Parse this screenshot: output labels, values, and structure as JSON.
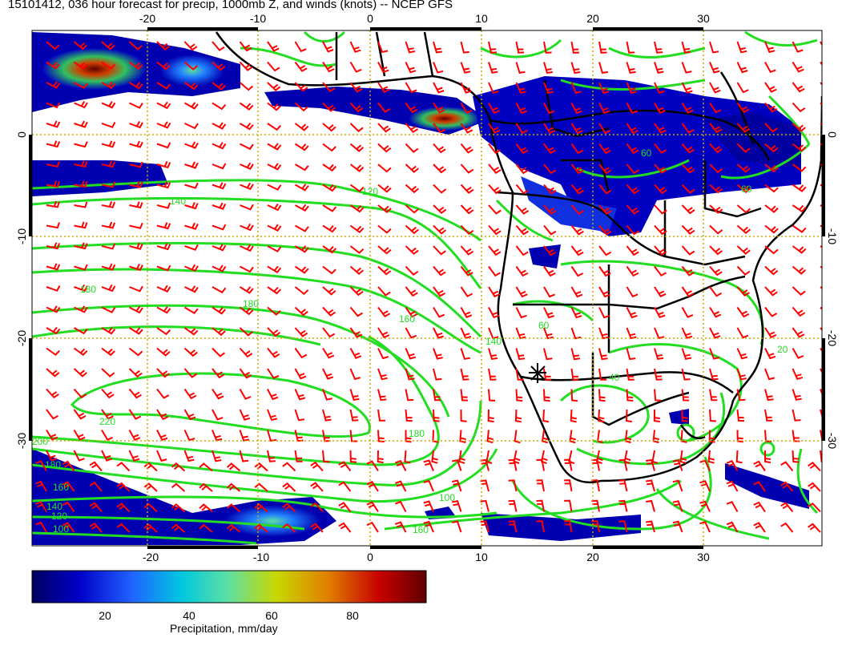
{
  "title": "15101412, 036 hour forecast for precip, 1000mb Z, and winds (knots) -- NCEP GFS",
  "map": {
    "lon_range": [
      -30,
      40
    ],
    "lat_range": [
      -40,
      10
    ],
    "lon_ticks": [
      -20,
      -10,
      0,
      10,
      20,
      30
    ],
    "lat_ticks": [
      0,
      -10,
      -20,
      -30
    ],
    "grid": "dotted, every 10 degrees",
    "colors": {
      "grid": "#ccaa00",
      "contours": "#22dd22",
      "wind_barbs": "#ff0000",
      "coastlines": "#000000"
    },
    "contour_labels": [
      "140",
      "120",
      "180",
      "180",
      "160",
      "140",
      "220",
      "200",
      "180",
      "160",
      "140",
      "120",
      "100",
      "160",
      "180",
      "100",
      "60",
      "60",
      "40",
      "20",
      "60"
    ]
  },
  "colorbar": {
    "label": "Precipitation, mm/day",
    "ticks": [
      "20",
      "40",
      "60",
      "80"
    ],
    "colors": [
      "#000060",
      "#0000c8",
      "#2060ff",
      "#00c8e0",
      "#60e0a0",
      "#c8d800",
      "#e08000",
      "#c80000",
      "#600000"
    ]
  }
}
